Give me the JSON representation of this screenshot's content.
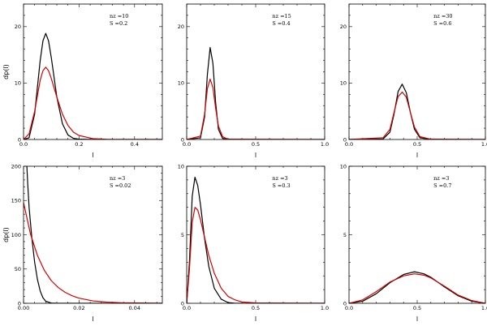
{
  "colors": {
    "black_curve": "#000000",
    "red_curve": "#d40000",
    "axes": "#000000"
  },
  "chart_data": [
    {
      "type": "line",
      "annotation": [
        "nz =10",
        "S =0.2"
      ],
      "xlabel": "l",
      "ylabel": "dp(l)",
      "xlim": [
        0,
        0.5
      ],
      "ylim": [
        0,
        24
      ],
      "xticks": [
        0,
        0.2,
        0.4
      ],
      "xtick_labels": [
        "0.0",
        "0.2",
        "0.4"
      ],
      "yticks": [
        0,
        10,
        20
      ],
      "ytick_labels": [
        "0",
        "10",
        "20"
      ],
      "grid": false,
      "series": [
        {
          "color": "#000000",
          "x": [
            0,
            0.02,
            0.04,
            0.06,
            0.07,
            0.08,
            0.09,
            0.1,
            0.12,
            0.14,
            0.16,
            0.18,
            0.2,
            0.25,
            0.3,
            0.5
          ],
          "y": [
            0,
            0.3,
            4.5,
            14,
            17.5,
            18.8,
            17.5,
            14.5,
            7.5,
            2.8,
            0.8,
            0.2,
            0.05,
            0,
            0,
            0
          ]
        },
        {
          "color": "#d40000",
          "x": [
            0,
            0.02,
            0.04,
            0.06,
            0.07,
            0.08,
            0.09,
            0.1,
            0.12,
            0.14,
            0.16,
            0.18,
            0.2,
            0.25,
            0.3,
            0.4,
            0.5
          ],
          "y": [
            0,
            1,
            5,
            10.5,
            12.2,
            12.8,
            12.2,
            10.8,
            7.5,
            4.5,
            2.5,
            1.3,
            0.7,
            0.15,
            0.03,
            0,
            0
          ]
        }
      ]
    },
    {
      "type": "line",
      "annotation": [
        "nz =15",
        "S =0.4"
      ],
      "xlabel": "l",
      "ylabel": "",
      "xlim": [
        0,
        1
      ],
      "ylim": [
        0,
        24
      ],
      "xticks": [
        0,
        0.5,
        1
      ],
      "xtick_labels": [
        "0.0",
        "0.5",
        "1.0"
      ],
      "yticks": [
        0,
        10,
        20
      ],
      "ytick_labels": [
        "0",
        "10",
        "20"
      ],
      "grid": false,
      "series": [
        {
          "color": "#000000",
          "x": [
            0,
            0.1,
            0.13,
            0.15,
            0.17,
            0.19,
            0.21,
            0.23,
            0.26,
            0.3,
            1
          ],
          "y": [
            0,
            0.3,
            4,
            11.5,
            16.3,
            13.5,
            6.5,
            1.8,
            0.2,
            0,
            0
          ]
        },
        {
          "color": "#d40000",
          "x": [
            0,
            0.1,
            0.13,
            0.15,
            0.17,
            0.19,
            0.21,
            0.23,
            0.26,
            0.3,
            1
          ],
          "y": [
            0,
            0.6,
            4.5,
            9,
            10.7,
            9.2,
            5.5,
            2.4,
            0.5,
            0.05,
            0
          ]
        }
      ]
    },
    {
      "type": "line",
      "annotation": [
        "nz =30",
        "S =0.6"
      ],
      "xlabel": "l",
      "ylabel": "",
      "xlim": [
        0,
        1
      ],
      "ylim": [
        0,
        24
      ],
      "xticks": [
        0,
        0.5,
        1
      ],
      "xtick_labels": [
        "0.0",
        "0.5",
        "1.0"
      ],
      "yticks": [
        0,
        10,
        20
      ],
      "ytick_labels": [
        "0",
        "10",
        "20"
      ],
      "grid": false,
      "series": [
        {
          "color": "#000000",
          "x": [
            0,
            0.25,
            0.3,
            0.33,
            0.36,
            0.39,
            0.42,
            0.45,
            0.48,
            0.52,
            0.6,
            1
          ],
          "y": [
            0,
            0.1,
            1.3,
            4.5,
            8.5,
            9.8,
            8.3,
            4.8,
            1.8,
            0.3,
            0,
            0
          ]
        },
        {
          "color": "#d40000",
          "x": [
            0,
            0.25,
            0.3,
            0.33,
            0.36,
            0.39,
            0.42,
            0.45,
            0.48,
            0.52,
            0.6,
            1
          ],
          "y": [
            0,
            0.3,
            1.8,
            4.8,
            7.6,
            8.4,
            7.5,
            4.8,
            2.2,
            0.5,
            0.05,
            0
          ]
        }
      ]
    },
    {
      "type": "line",
      "annotation": [
        "nz =3",
        "S =0.02"
      ],
      "xlabel": "l",
      "ylabel": "dp(l)",
      "xlim": [
        0,
        0.05
      ],
      "ylim": [
        0,
        200
      ],
      "xticks": [
        0,
        0.02,
        0.04
      ],
      "xtick_labels": [
        "0.00",
        "0.02",
        "0.04"
      ],
      "yticks": [
        0,
        50,
        100,
        150,
        200
      ],
      "ytick_labels": [
        "0",
        "50",
        "100",
        "150",
        "200"
      ],
      "grid": false,
      "series": [
        {
          "color": "#000000",
          "x": [
            0.0012,
            0.0015,
            0.002,
            0.003,
            0.004,
            0.005,
            0.006,
            0.007,
            0.008,
            0.01,
            0.012,
            0.05
          ],
          "y": [
            200,
            175,
            140,
            95,
            60,
            35,
            18,
            8,
            3,
            0.3,
            0,
            0
          ]
        },
        {
          "color": "#d40000",
          "x": [
            0,
            0.0025,
            0.005,
            0.0075,
            0.01,
            0.0125,
            0.015,
            0.0175,
            0.02,
            0.025,
            0.03,
            0.035,
            0.04,
            0.05
          ],
          "y": [
            147,
            101,
            70,
            48,
            33,
            23,
            16,
            11,
            7.5,
            3.5,
            1.7,
            0.8,
            0.4,
            0.1
          ]
        }
      ]
    },
    {
      "type": "line",
      "annotation": [
        "nz =3",
        "S =0.3"
      ],
      "xlabel": "l",
      "ylabel": "",
      "xlim": [
        0,
        1
      ],
      "ylim": [
        0,
        10
      ],
      "xticks": [
        0,
        0.5,
        1
      ],
      "xtick_labels": [
        "0.0",
        "0.5",
        "1.0"
      ],
      "yticks": [
        0,
        5,
        10
      ],
      "ytick_labels": [
        "0",
        "5",
        "10"
      ],
      "grid": false,
      "series": [
        {
          "color": "#000000",
          "x": [
            0,
            0.02,
            0.04,
            0.06,
            0.08,
            0.1,
            0.13,
            0.16,
            0.2,
            0.25,
            0.3,
            0.35,
            0.4,
            1
          ],
          "y": [
            0,
            3,
            7.8,
            9.2,
            8.6,
            7.2,
            4.7,
            2.7,
            1.1,
            0.3,
            0.05,
            0,
            0,
            0
          ]
        },
        {
          "color": "#d40000",
          "x": [
            0,
            0.02,
            0.04,
            0.06,
            0.08,
            0.1,
            0.13,
            0.16,
            0.2,
            0.25,
            0.3,
            0.35,
            0.4,
            0.5,
            1
          ],
          "y": [
            0,
            2.5,
            5.9,
            7.0,
            6.8,
            6.1,
            4.8,
            3.5,
            2.2,
            1.1,
            0.5,
            0.25,
            0.1,
            0.02,
            0
          ]
        }
      ]
    },
    {
      "type": "line",
      "annotation": [
        "nz =3",
        "S =0.7"
      ],
      "xlabel": "l",
      "ylabel": "",
      "xlim": [
        0,
        1
      ],
      "ylim": [
        0,
        10
      ],
      "xticks": [
        0,
        0.5,
        1
      ],
      "xtick_labels": [
        "0.0",
        "0.5",
        "1.0"
      ],
      "yticks": [
        0,
        5,
        10
      ],
      "ytick_labels": [
        "0",
        "5",
        "10"
      ],
      "grid": false,
      "series": [
        {
          "color": "#000000",
          "x": [
            0,
            0.1,
            0.2,
            0.3,
            0.4,
            0.48,
            0.55,
            0.6,
            0.7,
            0.8,
            0.9,
            1
          ],
          "y": [
            0,
            0.15,
            0.7,
            1.5,
            2.1,
            2.3,
            2.15,
            1.9,
            1.2,
            0.55,
            0.15,
            0
          ]
        },
        {
          "color": "#d40000",
          "x": [
            0,
            0.1,
            0.2,
            0.3,
            0.4,
            0.48,
            0.55,
            0.6,
            0.7,
            0.8,
            0.9,
            1
          ],
          "y": [
            0,
            0.25,
            0.85,
            1.55,
            2.0,
            2.15,
            2.05,
            1.85,
            1.25,
            0.6,
            0.2,
            0
          ]
        }
      ]
    }
  ]
}
